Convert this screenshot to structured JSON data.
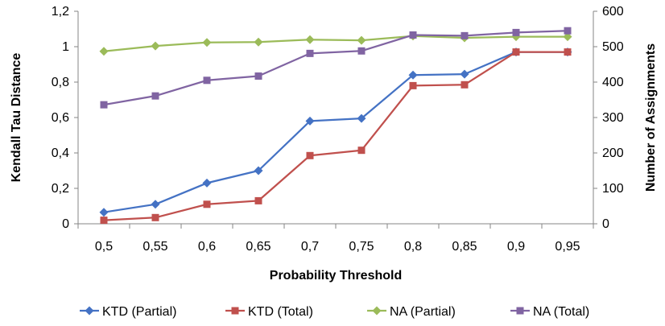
{
  "chart_data": {
    "type": "line",
    "title": "",
    "xlabel": "Probability Threshold",
    "ylabel": "Kendall Tau Distance",
    "y2label": "Number of Assignments",
    "categories": [
      "0,5",
      "0,55",
      "0,6",
      "0,65",
      "0,7",
      "0,75",
      "0,8",
      "0,85",
      "0,9",
      "0,95"
    ],
    "yticks": [
      "0",
      "0,2",
      "0,4",
      "0,6",
      "0,8",
      "1",
      "1,2"
    ],
    "y2ticks": [
      "0",
      "100",
      "200",
      "300",
      "400",
      "500",
      "600"
    ],
    "ylim": [
      0,
      1.2
    ],
    "y2lim": [
      0,
      600
    ],
    "grid": false,
    "legend_position": "bottom",
    "series": [
      {
        "name": "KTD (Partial)",
        "axis": "left",
        "color": "#4472c4",
        "marker": "diamond",
        "values": [
          0.065,
          0.11,
          0.23,
          0.3,
          0.58,
          0.595,
          0.84,
          0.845,
          0.97,
          0.97
        ]
      },
      {
        "name": "KTD (Total)",
        "axis": "left",
        "color": "#c0504d",
        "marker": "square",
        "values": [
          0.02,
          0.035,
          0.11,
          0.13,
          0.385,
          0.415,
          0.78,
          0.785,
          0.97,
          0.97
        ]
      },
      {
        "name": "NA (Partial)",
        "axis": "right",
        "color": "#9bbb59",
        "marker": "diamond",
        "values": [
          487,
          502,
          512,
          513,
          520,
          518,
          530,
          525,
          528,
          528
        ]
      },
      {
        "name": "NA (Total)",
        "axis": "right",
        "color": "#8064a2",
        "marker": "square",
        "values": [
          336,
          361,
          405,
          417,
          481,
          488,
          533,
          531,
          540,
          545
        ]
      }
    ]
  }
}
